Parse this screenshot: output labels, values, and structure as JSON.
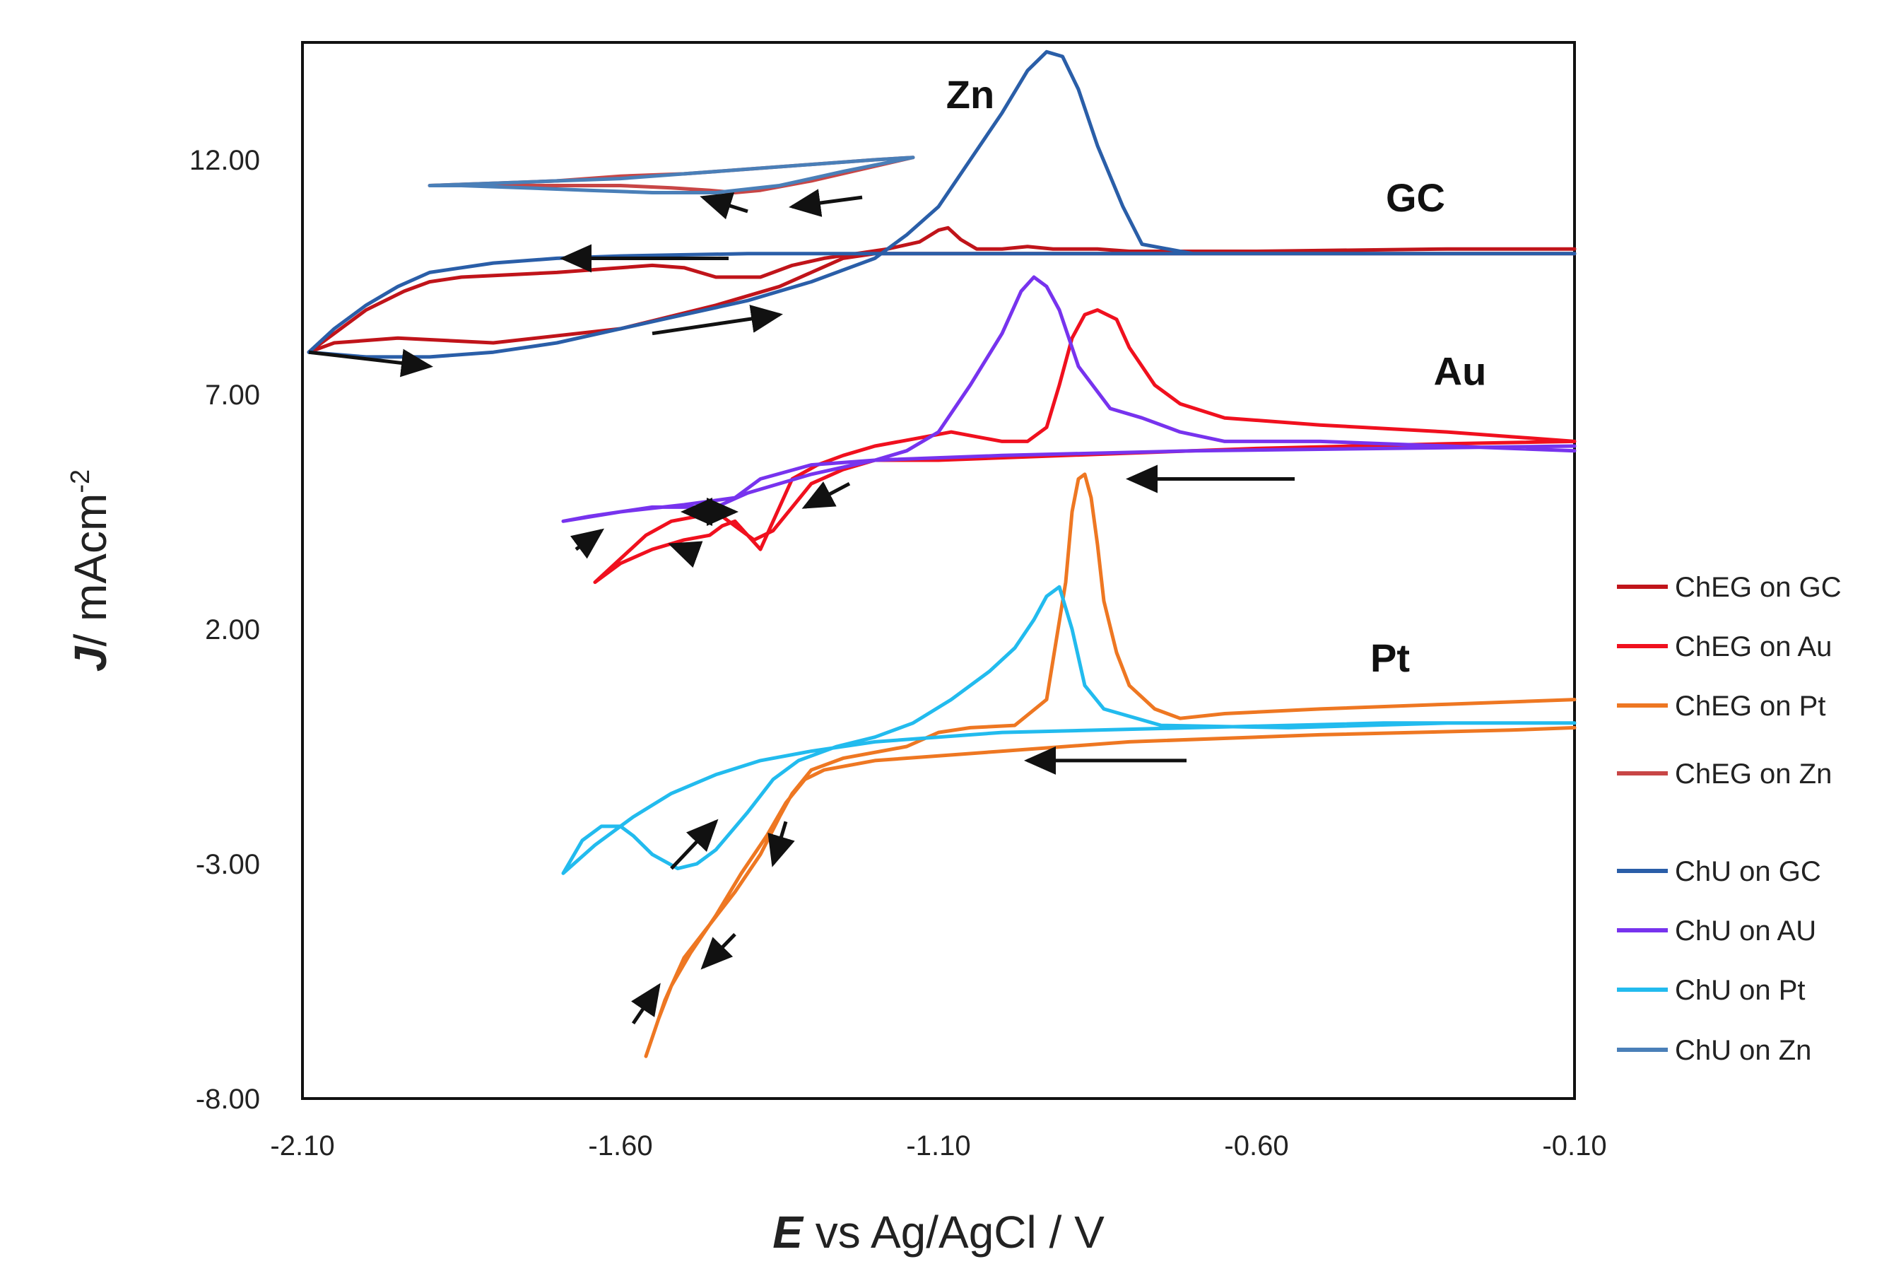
{
  "chart_data": {
    "type": "line",
    "title": "",
    "xlabel_symbol": "E",
    "xlabel_rest": " vs Ag/AgCl / V",
    "ylabel_symbol": "J",
    "ylabel_rest": "/ mAcm",
    "ylabel_sup": "-2",
    "xlim": [
      -2.1,
      -0.1
    ],
    "ylim": [
      -8.0,
      14.5
    ],
    "xticks": [
      -2.1,
      -1.6,
      -1.1,
      -0.6,
      -0.1
    ],
    "xtick_labels": [
      "-2.10",
      "-1.60",
      "-1.10",
      "-0.60",
      "-0.10"
    ],
    "yticks": [
      -8.0,
      -3.0,
      2.0,
      7.0,
      12.0
    ],
    "ytick_labels": [
      "-8.00",
      "-3.00",
      "2.00",
      "7.00",
      "12.00"
    ],
    "grid": false,
    "legend_position": "right",
    "annotations": [
      {
        "text": "Zn",
        "x": -1.05,
        "y": 13.1
      },
      {
        "text": "GC",
        "x": -0.35,
        "y": 10.9
      },
      {
        "text": "Au",
        "x": -0.28,
        "y": 7.2
      },
      {
        "text": "Pt",
        "x": -0.39,
        "y": 1.1
      }
    ],
    "arrows": [
      {
        "x1": -1.22,
        "y1": 11.2,
        "x2": -1.33,
        "y2": 11.0
      },
      {
        "x1": -1.4,
        "y1": 10.9,
        "x2": -1.47,
        "y2": 11.2
      },
      {
        "x1": -1.43,
        "y1": 9.9,
        "x2": -1.69,
        "y2": 9.9
      },
      {
        "x1": -1.55,
        "y1": 8.3,
        "x2": -1.35,
        "y2": 8.7
      },
      {
        "x1": -2.09,
        "y1": 7.9,
        "x2": -1.9,
        "y2": 7.6
      },
      {
        "x1": -0.54,
        "y1": 5.2,
        "x2": -0.8,
        "y2": 5.2
      },
      {
        "x1": -1.24,
        "y1": 5.1,
        "x2": -1.31,
        "y2": 4.6
      },
      {
        "x1": -1.44,
        "y1": 4.5,
        "x2": -1.5,
        "y2": 4.5
      },
      {
        "x1": -1.48,
        "y1": 4.5,
        "x2": -1.42,
        "y2": 4.5
      },
      {
        "x1": -1.48,
        "y1": 3.6,
        "x2": -1.52,
        "y2": 3.8
      },
      {
        "x1": -1.67,
        "y1": 3.7,
        "x2": -1.63,
        "y2": 4.1
      },
      {
        "x1": -0.71,
        "y1": -0.8,
        "x2": -0.96,
        "y2": -0.8
      },
      {
        "x1": -1.52,
        "y1": -3.1,
        "x2": -1.45,
        "y2": -2.1
      },
      {
        "x1": -1.34,
        "y1": -2.1,
        "x2": -1.36,
        "y2": -3.0
      },
      {
        "x1": -1.42,
        "y1": -4.5,
        "x2": -1.47,
        "y2": -5.2
      },
      {
        "x1": -1.58,
        "y1": -6.4,
        "x2": -1.54,
        "y2": -5.6
      }
    ],
    "series": [
      {
        "name": "ChEG on GC",
        "color": "#c0141a",
        "x": [
          -0.1,
          -0.3,
          -0.6,
          -0.8,
          -0.85,
          -0.92,
          -0.96,
          -1.0,
          -1.04,
          -1.065,
          -1.085,
          -1.1,
          -1.13,
          -1.18,
          -1.23,
          -1.28,
          -1.33,
          -1.38,
          -1.45,
          -1.5,
          -1.55,
          -1.6,
          -1.7,
          -1.85,
          -1.9,
          -1.94,
          -2.0,
          -2.05,
          -2.09,
          -2.05,
          -1.95,
          -1.8,
          -1.6,
          -1.45,
          -1.35,
          -1.3,
          -1.25,
          -1.2,
          -1.1,
          -0.9,
          -0.6,
          -0.3,
          -0.1
        ],
        "y": [
          10.1,
          10.1,
          10.05,
          10.05,
          10.1,
          10.1,
          10.15,
          10.1,
          10.1,
          10.3,
          10.55,
          10.5,
          10.25,
          10.1,
          10.0,
          9.9,
          9.75,
          9.5,
          9.5,
          9.7,
          9.75,
          9.7,
          9.6,
          9.5,
          9.4,
          9.2,
          8.8,
          8.3,
          7.9,
          8.1,
          8.2,
          8.1,
          8.4,
          8.9,
          9.3,
          9.6,
          9.9,
          10.0,
          10.0,
          10.0,
          10.0,
          10.0,
          10.0
        ]
      },
      {
        "name": "ChEG on Au",
        "color": "#f0101e",
        "x": [
          -0.1,
          -0.3,
          -0.5,
          -0.65,
          -0.72,
          -0.76,
          -0.8,
          -0.82,
          -0.85,
          -0.87,
          -0.89,
          -0.91,
          -0.93,
          -0.96,
          -1.0,
          -1.04,
          -1.08,
          -1.12,
          -1.16,
          -1.2,
          -1.25,
          -1.29,
          -1.33,
          -1.35,
          -1.37,
          -1.38,
          -1.4,
          -1.42,
          -1.44,
          -1.46,
          -1.5,
          -1.55,
          -1.6,
          -1.64,
          -1.6,
          -1.56,
          -1.52,
          -1.48,
          -1.44,
          -1.41,
          -1.39,
          -1.36,
          -1.33,
          -1.3,
          -1.25,
          -1.2,
          -1.1,
          -0.9,
          -0.6,
          -0.3,
          -0.1
        ],
        "y": [
          6.0,
          6.2,
          6.35,
          6.5,
          6.8,
          7.2,
          8.0,
          8.6,
          8.8,
          8.7,
          8.2,
          7.2,
          6.3,
          6.0,
          6.0,
          6.1,
          6.2,
          6.1,
          6.0,
          5.9,
          5.7,
          5.5,
          5.2,
          4.6,
          4.0,
          3.7,
          4.0,
          4.3,
          4.2,
          4.0,
          3.9,
          3.7,
          3.4,
          3.0,
          3.5,
          4.0,
          4.3,
          4.4,
          4.4,
          4.1,
          3.9,
          4.1,
          4.6,
          5.1,
          5.4,
          5.6,
          5.6,
          5.7,
          5.85,
          5.95,
          6.0
        ]
      },
      {
        "name": "ChEG on Pt",
        "color": "#ee7722",
        "x": [
          -0.1,
          -0.3,
          -0.5,
          -0.65,
          -0.72,
          -0.76,
          -0.8,
          -0.82,
          -0.84,
          -0.85,
          -0.86,
          -0.87,
          -0.88,
          -0.89,
          -0.9,
          -0.93,
          -0.98,
          -1.05,
          -1.1,
          -1.15,
          -1.25,
          -1.3,
          -1.33,
          -1.35,
          -1.38,
          -1.42,
          -1.46,
          -1.5,
          -1.53,
          -1.56,
          -1.54,
          -1.52,
          -1.49,
          -1.45,
          -1.41,
          -1.37,
          -1.34,
          -1.31,
          -1.28,
          -1.2,
          -1.0,
          -0.8,
          -0.5,
          -0.2,
          -0.1
        ],
        "y": [
          0.5,
          0.4,
          0.3,
          0.2,
          0.1,
          0.3,
          0.8,
          1.5,
          2.6,
          3.8,
          4.8,
          5.3,
          5.2,
          4.5,
          3.0,
          0.5,
          -0.05,
          -0.1,
          -0.2,
          -0.5,
          -0.75,
          -1.0,
          -1.5,
          -2.0,
          -2.8,
          -3.6,
          -4.3,
          -5.0,
          -5.9,
          -7.1,
          -6.3,
          -5.6,
          -4.9,
          -4.1,
          -3.2,
          -2.4,
          -1.7,
          -1.2,
          -1.0,
          -0.8,
          -0.6,
          -0.4,
          -0.25,
          -0.15,
          -0.1
        ]
      },
      {
        "name": "ChEG on Zn",
        "color": "#c84646",
        "x": [
          -1.14,
          -1.22,
          -1.3,
          -1.38,
          -1.42,
          -1.46,
          -1.52,
          -1.6,
          -1.7,
          -1.8,
          -1.9,
          -1.8,
          -1.7,
          -1.6,
          -1.5,
          -1.4,
          -1.3,
          -1.2,
          -1.14
        ],
        "y": [
          12.05,
          11.8,
          11.55,
          11.35,
          11.3,
          11.35,
          11.4,
          11.45,
          11.45,
          11.45,
          11.45,
          11.5,
          11.55,
          11.65,
          11.7,
          11.8,
          11.9,
          12.0,
          12.05
        ]
      },
      {
        "name": "ChU on GC",
        "color": "#2a5ea8",
        "x": [
          -0.1,
          -0.4,
          -0.7,
          -0.78,
          -0.81,
          -0.85,
          -0.88,
          -0.905,
          -0.93,
          -0.96,
          -1.0,
          -1.05,
          -1.1,
          -1.15,
          -1.2,
          -1.3,
          -1.4,
          -1.5,
          -1.6,
          -1.7,
          -1.8,
          -1.9,
          -2.0,
          -2.09,
          -2.05,
          -2.0,
          -1.95,
          -1.9,
          -1.8,
          -1.7,
          -1.6,
          -1.4,
          -1.2,
          -1.0,
          -0.8,
          -0.5,
          -0.1
        ],
        "y": [
          10.0,
          10.0,
          10.0,
          10.2,
          11.0,
          12.3,
          13.5,
          14.2,
          14.3,
          13.9,
          13.0,
          12.0,
          11.0,
          10.4,
          9.9,
          9.4,
          9.0,
          8.7,
          8.4,
          8.1,
          7.9,
          7.8,
          7.8,
          7.9,
          8.4,
          8.9,
          9.3,
          9.6,
          9.8,
          9.9,
          9.95,
          10.0,
          10.0,
          10.0,
          10.0,
          10.0,
          10.0
        ]
      },
      {
        "name": "ChU on AU",
        "color": "#7733ee",
        "x": [
          -0.1,
          -0.3,
          -0.5,
          -0.65,
          -0.72,
          -0.78,
          -0.83,
          -0.88,
          -0.91,
          -0.93,
          -0.95,
          -0.97,
          -1.0,
          -1.05,
          -1.1,
          -1.15,
          -1.2,
          -1.3,
          -1.4,
          -1.45,
          -1.5,
          -1.55,
          -1.6,
          -1.65,
          -1.69,
          -1.6,
          -1.5,
          -1.42,
          -1.38,
          -1.3,
          -1.2,
          -1.0,
          -0.7,
          -0.4,
          -0.1
        ],
        "y": [
          5.8,
          5.9,
          6.0,
          6.0,
          6.2,
          6.5,
          6.7,
          7.6,
          8.8,
          9.3,
          9.5,
          9.2,
          8.3,
          7.2,
          6.2,
          5.8,
          5.6,
          5.3,
          4.9,
          4.6,
          4.6,
          4.6,
          4.5,
          4.4,
          4.3,
          4.5,
          4.65,
          4.8,
          5.2,
          5.5,
          5.6,
          5.7,
          5.8,
          5.85,
          5.9
        ]
      },
      {
        "name": "ChU on Pt",
        "color": "#22bbee",
        "x": [
          -0.1,
          -0.3,
          -0.55,
          -0.75,
          -0.84,
          -0.87,
          -0.89,
          -0.91,
          -0.93,
          -0.95,
          -0.98,
          -1.02,
          -1.08,
          -1.14,
          -1.2,
          -1.26,
          -1.32,
          -1.36,
          -1.4,
          -1.45,
          -1.48,
          -1.51,
          -1.55,
          -1.58,
          -1.6,
          -1.63,
          -1.66,
          -1.69,
          -1.64,
          -1.58,
          -1.52,
          -1.45,
          -1.38,
          -1.3,
          -1.2,
          -1.0,
          -0.7,
          -0.4,
          -0.1
        ],
        "y": [
          0.0,
          0.0,
          -0.1,
          -0.05,
          0.3,
          0.8,
          2.0,
          2.9,
          2.7,
          2.2,
          1.6,
          1.1,
          0.5,
          0.0,
          -0.3,
          -0.5,
          -0.8,
          -1.2,
          -1.9,
          -2.7,
          -3.0,
          -3.1,
          -2.8,
          -2.4,
          -2.2,
          -2.2,
          -2.5,
          -3.2,
          -2.6,
          -2.0,
          -1.5,
          -1.1,
          -0.8,
          -0.6,
          -0.4,
          -0.2,
          -0.1,
          0.0,
          0.0
        ]
      },
      {
        "name": "ChU on Zn",
        "color": "#4a7fb8",
        "x": [
          -1.14,
          -1.25,
          -1.35,
          -1.45,
          -1.55,
          -1.65,
          -1.75,
          -1.85,
          -1.9,
          -1.8,
          -1.7,
          -1.6,
          -1.5,
          -1.4,
          -1.3,
          -1.2,
          -1.14
        ],
        "y": [
          12.05,
          11.75,
          11.45,
          11.3,
          11.3,
          11.35,
          11.4,
          11.45,
          11.45,
          11.5,
          11.55,
          11.6,
          11.7,
          11.8,
          11.9,
          12.0,
          12.05
        ]
      }
    ]
  }
}
